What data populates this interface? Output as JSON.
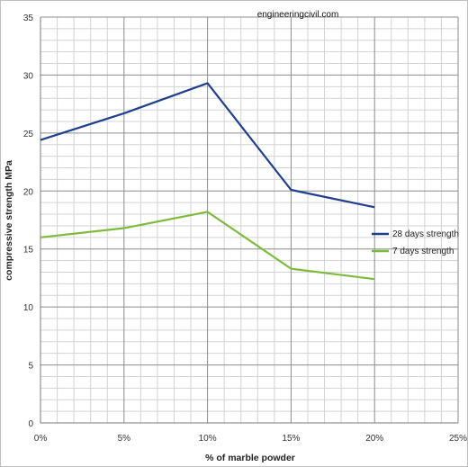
{
  "chart_data": {
    "type": "line",
    "title": "",
    "xlabel": "% of marble powder",
    "ylabel": "compressive strength MPa",
    "x": [
      "0%",
      "5%",
      "10%",
      "15%",
      "20%"
    ],
    "x_ticks": [
      "0%",
      "5%",
      "10%",
      "15%",
      "20%",
      "25%"
    ],
    "ylim": [
      0,
      35
    ],
    "y_ticks": [
      0,
      5,
      10,
      15,
      20,
      25,
      30,
      35
    ],
    "grid": true,
    "legend_position": "right",
    "series": [
      {
        "name": "28 days strength",
        "color": "#1f3f8f",
        "values": [
          24.4,
          26.7,
          29.3,
          20.1,
          18.6
        ]
      },
      {
        "name": "7 days strength",
        "color": "#7dbb3c",
        "values": [
          16.0,
          16.8,
          18.2,
          13.3,
          12.4
        ]
      }
    ],
    "watermark": "engineeringcivil.com"
  }
}
